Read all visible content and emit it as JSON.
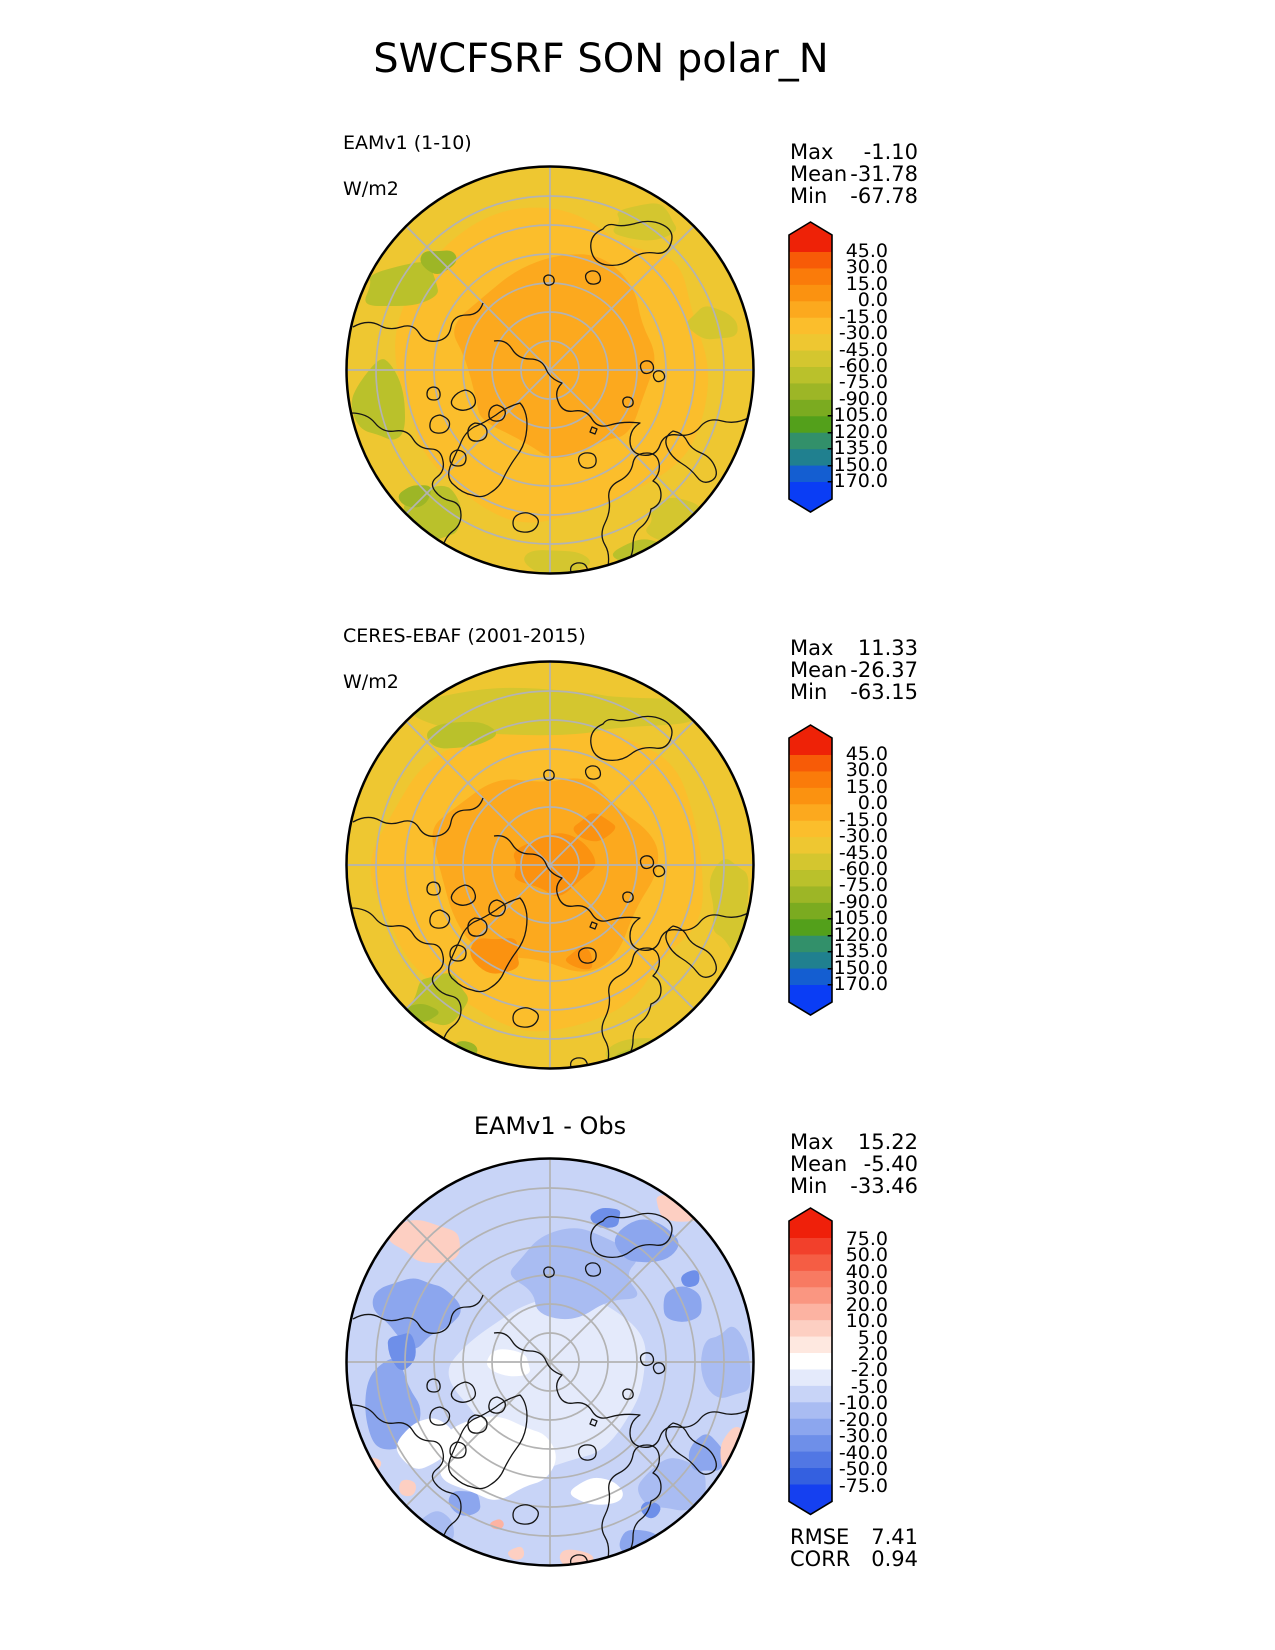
{
  "title": "SWCFSRF SON polar_N",
  "style_colors": {
    "graticule": "#b3b3b3",
    "coastline": "#151515",
    "map_outline": "#000000"
  },
  "panels": [
    {
      "label_line1": "EAMv1 (1-10)",
      "label_line2": "W/m2",
      "stats": [
        {
          "label": "Max",
          "value": "-1.10"
        },
        {
          "label": "Mean",
          "value": "-31.78"
        },
        {
          "label": "Min",
          "value": "-67.78"
        }
      ],
      "colorbar": {
        "tick_labels": [
          "45.0",
          "30.0",
          "15.0",
          "0.0",
          "-15.0",
          "-30.0",
          "-45.0",
          "-60.0",
          "-75.0",
          "-90.0",
          "-105.0",
          "-120.0",
          "-135.0",
          "-150.0",
          "-170.0"
        ],
        "colors": [
          "#ee2207",
          "#f75b07",
          "#fa7b0a",
          "#fb9210",
          "#fca91e",
          "#fbbe2c",
          "#eec731",
          "#d4c62f",
          "#bac12b",
          "#9db626",
          "#7bab20",
          "#53a01b",
          "#32906a",
          "#20808f",
          "#145ed1",
          "#0a3df5"
        ]
      }
    },
    {
      "label_line1": "CERES-EBAF (2001-2015)",
      "label_line2": "W/m2",
      "stats": [
        {
          "label": "Max",
          "value": "11.33"
        },
        {
          "label": "Mean",
          "value": "-26.37"
        },
        {
          "label": "Min",
          "value": "-63.15"
        }
      ],
      "colorbar": {
        "tick_labels": [
          "45.0",
          "30.0",
          "15.0",
          "0.0",
          "-15.0",
          "-30.0",
          "-45.0",
          "-60.0",
          "-75.0",
          "-90.0",
          "-105.0",
          "-120.0",
          "-135.0",
          "-150.0",
          "-170.0"
        ],
        "colors": [
          "#ee2207",
          "#f75b07",
          "#fa7b0a",
          "#fb9210",
          "#fca91e",
          "#fbbe2c",
          "#eec731",
          "#d4c62f",
          "#bac12b",
          "#9db626",
          "#7bab20",
          "#53a01b",
          "#32906a",
          "#20808f",
          "#145ed1",
          "#0a3df5"
        ]
      }
    },
    {
      "title": "EAMv1 - Obs",
      "stats": [
        {
          "label": "Max",
          "value": "15.22"
        },
        {
          "label": "Mean",
          "value": "-5.40"
        },
        {
          "label": "Min",
          "value": "-33.46"
        }
      ],
      "colorbar": {
        "tick_labels": [
          "75.0",
          "50.0",
          "40.0",
          "30.0",
          "20.0",
          "10.0",
          "5.0",
          "2.0",
          "-2.0",
          "-5.0",
          "-10.0",
          "-20.0",
          "-30.0",
          "-40.0",
          "-50.0",
          "-75.0"
        ],
        "colors": [
          "#ef200a",
          "#f2402b",
          "#f55d44",
          "#f87a62",
          "#fa9681",
          "#fcb3a2",
          "#fdcfc2",
          "#fee8e0",
          "#ffffff",
          "#e4eafb",
          "#c8d4f7",
          "#a9bcf2",
          "#8ca6ee",
          "#6e8fe9",
          "#5177e4",
          "#3460e0",
          "#1540f0"
        ]
      },
      "metrics": [
        {
          "label": "RMSE",
          "value": "7.41"
        },
        {
          "label": "CORR",
          "value": "0.94"
        }
      ]
    }
  ],
  "chart_data": [
    {
      "type": "heatmap",
      "variable": "SWCFSRF",
      "season": "SON",
      "region": "polar_N",
      "title": "EAMv1 (1-10)",
      "units": "W/m2",
      "projection": "north polar stereographic",
      "stats": {
        "max": -1.1,
        "mean": -31.78,
        "min": -67.78
      },
      "contour_levels": [
        45,
        30,
        15,
        0,
        -15,
        -30,
        -45,
        -60,
        -75,
        -90,
        -105,
        -120,
        -135,
        -150,
        -170
      ],
      "legend_position": "right",
      "description": "Filled contour polar map: values near 0 to -15 W/m2 over the central Arctic, -15 to -45 over mid latitudes of the domain, patches of -45 to -90 near the outer (southern) edge"
    },
    {
      "type": "heatmap",
      "variable": "SWCFSRF",
      "season": "SON",
      "region": "polar_N",
      "title": "CERES-EBAF (2001-2015)",
      "units": "W/m2",
      "projection": "north polar stereographic",
      "stats": {
        "max": 11.33,
        "mean": -26.37,
        "min": -63.15
      },
      "contour_levels": [
        45,
        30,
        15,
        0,
        -15,
        -30,
        -45,
        -60,
        -75,
        -90,
        -105,
        -120,
        -135,
        -150,
        -170
      ],
      "legend_position": "right",
      "description": "Filled contour polar map similar to EAMv1 panel but with slightly stronger orange (0 to +15) patch right at the pole and over Greenland, olive-green band along the top edge and lower-left edge"
    },
    {
      "type": "heatmap",
      "variable": "SWCFSRF difference",
      "season": "SON",
      "region": "polar_N",
      "title": "EAMv1 - Obs",
      "units": "W/m2",
      "projection": "north polar stereographic",
      "stats": {
        "max": 15.22,
        "mean": -5.4,
        "min": -33.46
      },
      "metrics": {
        "rmse": 7.41,
        "corr": 0.94
      },
      "contour_levels": [
        75,
        50,
        40,
        30,
        20,
        10,
        5,
        2,
        -2,
        -5,
        -10,
        -20,
        -30,
        -40,
        -50,
        -75
      ],
      "legend_position": "right",
      "description": "Difference map mostly light blue (-2 to -10 W/m2) with darker blue patches (-10 to -40) around the rim, white (+-2) areas over Greenland and parts of North America, and small pale pink (+2 to +10) patches near the edges"
    }
  ]
}
